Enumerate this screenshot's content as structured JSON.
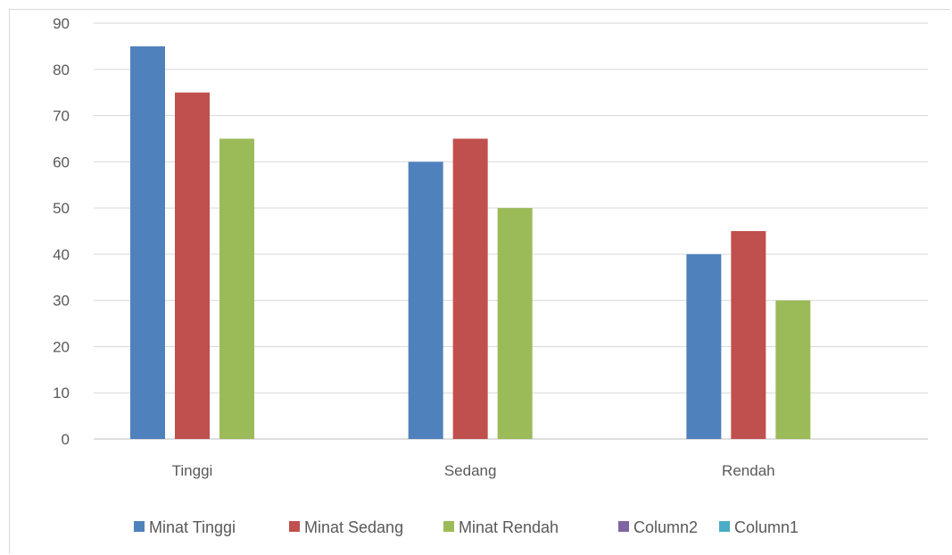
{
  "chart_data": {
    "type": "bar",
    "categories": [
      "Tinggi",
      "Sedang",
      "Rendah"
    ],
    "series": [
      {
        "name": "Minat Tinggi",
        "values": [
          85,
          60,
          40
        ],
        "color": "#4f81bd"
      },
      {
        "name": "Minat Sedang",
        "values": [
          75,
          65,
          45
        ],
        "color": "#c0504d"
      },
      {
        "name": "Minat Rendah",
        "values": [
          65,
          50,
          30
        ],
        "color": "#9bbb59"
      },
      {
        "name": "Column2",
        "values": [
          null,
          null,
          null
        ],
        "color": "#8064a2"
      },
      {
        "name": "Column1",
        "values": [
          null,
          null,
          null
        ],
        "color": "#4bacc6"
      }
    ],
    "ylim": [
      0,
      90
    ],
    "yticks": [
      0,
      10,
      20,
      30,
      40,
      50,
      60,
      70,
      80,
      90
    ],
    "grid": true,
    "legend_position": "bottom",
    "title": "",
    "xlabel": "",
    "ylabel": ""
  }
}
